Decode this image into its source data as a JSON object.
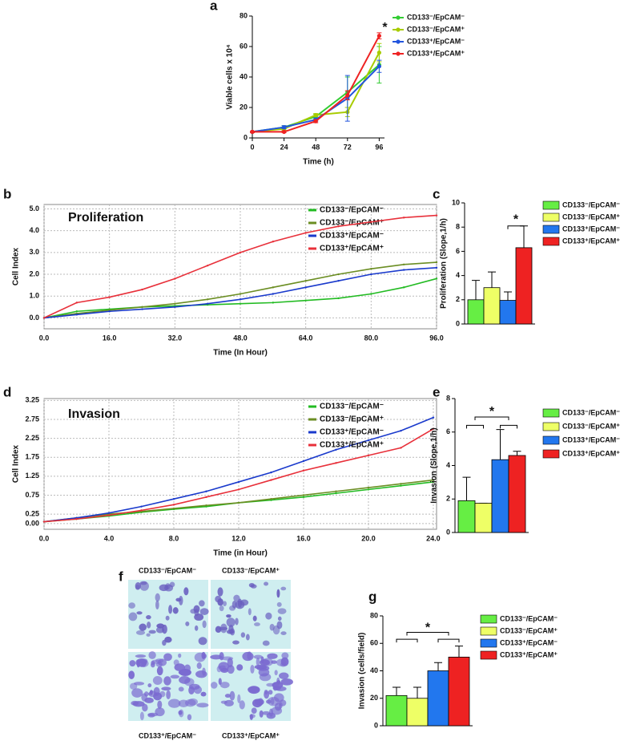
{
  "chart_data": [
    {
      "type": "line",
      "panel_label": "a",
      "x_label": "Time (h)",
      "y_label": "Viable cells x 10⁴",
      "annotation": "*",
      "x": [
        0,
        24,
        48,
        72,
        96
      ],
      "xlim": [
        0,
        100
      ],
      "xticks": [
        0,
        24,
        48,
        72,
        96
      ],
      "ylim": [
        0,
        80
      ],
      "yticks": [
        0,
        20,
        40,
        60,
        80
      ],
      "grid": false,
      "markers": true,
      "legend": "upper right",
      "series": [
        {
          "name": "CD133⁻/EpCAM⁻",
          "color": "#33cc33",
          "values": [
            4,
            7,
            14,
            30,
            48
          ],
          "errors": [
            0.5,
            1,
            1.5,
            10,
            12
          ]
        },
        {
          "name": "CD133⁻/EpCAM⁺",
          "color": "#a8cc00",
          "values": [
            4,
            6,
            15,
            17,
            56
          ],
          "errors": [
            0.5,
            1,
            1,
            3,
            6
          ]
        },
        {
          "name": "CD133⁺/EpCAM⁻",
          "color": "#2255dd",
          "values": [
            4,
            7,
            12,
            26,
            47
          ],
          "errors": [
            0.5,
            1,
            1,
            15,
            4
          ]
        },
        {
          "name": "CD133⁺/EpCAM⁺",
          "color": "#ee2222",
          "values": [
            4,
            4,
            11,
            28,
            67
          ],
          "errors": [
            0.5,
            0.5,
            1,
            3,
            2
          ]
        }
      ]
    },
    {
      "type": "line",
      "panel_label": "b",
      "title": "Proliferation",
      "x_label": "Time (In Hour)",
      "y_label": "Cell Index",
      "x": [
        0,
        8,
        16,
        24,
        32,
        40,
        48,
        56,
        64,
        72,
        80,
        88,
        96
      ],
      "xlim": [
        0,
        96
      ],
      "xticks": [
        {
          "value": 0,
          "label": "0.0"
        },
        {
          "value": 16,
          "label": "16.0"
        },
        {
          "value": 32,
          "label": "32.0"
        },
        {
          "value": 48,
          "label": "48.0"
        },
        {
          "value": 64,
          "label": "64.0"
        },
        {
          "value": 80,
          "label": "80.0"
        },
        {
          "value": 96,
          "label": "96.0"
        }
      ],
      "ylim": [
        -0.5,
        5.2
      ],
      "yticks": [
        {
          "value": 0,
          "label": "0.0"
        },
        {
          "value": 1,
          "label": "1.0"
        },
        {
          "value": 2,
          "label": "2.0"
        },
        {
          "value": 3,
          "label": "3.0"
        },
        {
          "value": 4,
          "label": "4.0"
        },
        {
          "value": 5,
          "label": "5.0"
        }
      ],
      "grid": true,
      "markers": false,
      "legend": "upper right",
      "series": [
        {
          "name": "CD133⁻/EpCAM⁻",
          "color": "#22bb22",
          "values": [
            0,
            0.3,
            0.4,
            0.5,
            0.55,
            0.6,
            0.65,
            0.7,
            0.8,
            0.9,
            1.1,
            1.4,
            1.8
          ]
        },
        {
          "name": "CD133⁻/EpCAM⁺",
          "color": "#6b8e23",
          "values": [
            0,
            0.2,
            0.35,
            0.5,
            0.65,
            0.85,
            1.1,
            1.4,
            1.7,
            2.0,
            2.25,
            2.45,
            2.55
          ]
        },
        {
          "name": "CD133⁺/EpCAM⁻",
          "color": "#1a3acc",
          "values": [
            0,
            0.15,
            0.3,
            0.4,
            0.5,
            0.65,
            0.85,
            1.1,
            1.4,
            1.7,
            2.0,
            2.2,
            2.3
          ]
        },
        {
          "name": "CD133⁺/EpCAM⁺",
          "color": "#e8303a",
          "values": [
            0,
            0.7,
            0.95,
            1.3,
            1.8,
            2.4,
            3.0,
            3.5,
            3.9,
            4.2,
            4.4,
            4.6,
            4.7
          ]
        }
      ]
    },
    {
      "type": "bar",
      "panel_label": "c",
      "y_label": "Proliferation (Slope,1/h)",
      "annotation": "*",
      "categories": [
        "CD133⁻/EpCAM⁻",
        "CD133⁻/EpCAM⁺",
        "CD133⁺/EpCAM⁻",
        "CD133⁺/EpCAM⁺"
      ],
      "colors": [
        "#66ee44",
        "#eeff66",
        "#2277ee",
        "#ee2222"
      ],
      "values": [
        2.0,
        3.0,
        1.95,
        6.3
      ],
      "errors": [
        1.6,
        1.3,
        0.7,
        1.8
      ],
      "ylim": [
        0,
        10
      ],
      "yticks": [
        0,
        2,
        4,
        6,
        8,
        10
      ],
      "legend": "right"
    },
    {
      "type": "line",
      "panel_label": "d",
      "title": "Invasion",
      "x_label": "Time (in Hour)",
      "y_label": "Cell Index",
      "x": [
        0,
        2,
        4,
        6,
        8,
        10,
        12,
        14,
        16,
        18,
        20,
        22,
        24
      ],
      "xlim": [
        0,
        24.2
      ],
      "xticks": [
        {
          "value": 0,
          "label": "0.0"
        },
        {
          "value": 4,
          "label": "4.0"
        },
        {
          "value": 8,
          "label": "8.0"
        },
        {
          "value": 12,
          "label": "12.0"
        },
        {
          "value": 16,
          "label": "16.0"
        },
        {
          "value": 20,
          "label": "20.0"
        },
        {
          "value": 24,
          "label": "24.0"
        }
      ],
      "ylim": [
        -0.15,
        3.3
      ],
      "yticks": [
        {
          "value": 0,
          "label": "0.00"
        },
        {
          "value": 0.25,
          "label": "0.25"
        },
        {
          "value": 0.75,
          "label": "0.75"
        },
        {
          "value": 1.25,
          "label": "1.25"
        },
        {
          "value": 1.75,
          "label": "1.75"
        },
        {
          "value": 2.25,
          "label": "2.25"
        },
        {
          "value": 2.75,
          "label": "2.75"
        },
        {
          "value": 3.25,
          "label": "3.25"
        }
      ],
      "grid": true,
      "markers": false,
      "legend": "upper right",
      "series": [
        {
          "name": "CD133⁻/EpCAM⁻",
          "color": "#22bb22",
          "values": [
            0.05,
            0.12,
            0.2,
            0.3,
            0.38,
            0.45,
            0.55,
            0.62,
            0.7,
            0.8,
            0.9,
            1.0,
            1.1
          ]
        },
        {
          "name": "CD133⁻/EpCAM⁺",
          "color": "#6b8e23",
          "values": [
            0.05,
            0.15,
            0.25,
            0.32,
            0.4,
            0.48,
            0.55,
            0.65,
            0.75,
            0.85,
            0.95,
            1.05,
            1.15
          ]
        },
        {
          "name": "CD133⁺/EpCAM⁻",
          "color": "#1a3acc",
          "values": [
            0.05,
            0.15,
            0.28,
            0.45,
            0.65,
            0.85,
            1.1,
            1.35,
            1.65,
            1.95,
            2.2,
            2.45,
            2.8
          ]
        },
        {
          "name": "CD133⁺/EpCAM⁺",
          "color": "#e8303a",
          "values": [
            0.05,
            0.12,
            0.22,
            0.35,
            0.5,
            0.7,
            0.9,
            1.15,
            1.4,
            1.6,
            1.8,
            2.0,
            2.5
          ]
        }
      ]
    },
    {
      "type": "bar",
      "panel_label": "e",
      "y_label": "Invasion (Slope,1/h)",
      "annotation": "*",
      "categories": [
        "CD133⁻/EpCAM⁻",
        "CD133⁻/EpCAM⁺",
        "CD133⁺/EpCAM⁻",
        "CD133⁺/EpCAM⁺"
      ],
      "colors": [
        "#66ee44",
        "#eeff66",
        "#2277ee",
        "#ee2222"
      ],
      "values": [
        1.9,
        1.75,
        4.35,
        4.6
      ],
      "errors": [
        1.4,
        0,
        1.8,
        0.25
      ],
      "ylim": [
        0,
        8
      ],
      "yticks": [
        0,
        2,
        4,
        6,
        8
      ],
      "legend": "right"
    },
    {
      "type": "bar",
      "panel_label": "g",
      "y_label": "Invasion (cells/field)",
      "annotation": "*",
      "categories": [
        "CD133⁻/EpCAM⁻",
        "CD133⁻/EpCAM⁺",
        "CD133⁺/EpCAM⁻",
        "CD133⁺/EpCAM⁺"
      ],
      "colors": [
        "#66ee44",
        "#eeff66",
        "#2277ee",
        "#ee2222"
      ],
      "values": [
        22,
        20,
        40,
        50
      ],
      "errors": [
        6,
        8,
        6,
        8
      ],
      "ylim": [
        0,
        80
      ],
      "yticks": [
        0,
        20,
        40,
        60,
        80
      ],
      "legend": "right"
    }
  ],
  "figure_f": {
    "panel_label": "f",
    "captions": [
      "CD133⁻/EpCAM⁻",
      "CD133⁻/EpCAM⁺",
      "CD133⁺/EpCAM⁻",
      "CD133⁺/EpCAM⁺"
    ]
  }
}
